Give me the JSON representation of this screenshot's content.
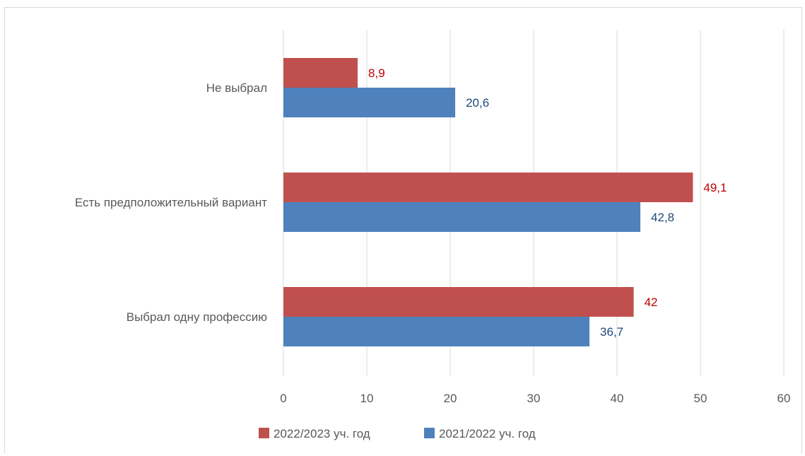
{
  "chart_data": {
    "type": "bar",
    "orientation": "horizontal",
    "categories": [
      "Не выбрал",
      "Есть предположительный вариант",
      "Выбрал одну профессию"
    ],
    "series": [
      {
        "name": "2022/2023 уч. год",
        "values": [
          8.9,
          49.1,
          42
        ],
        "labels": [
          "8,9",
          "49,1",
          "42"
        ],
        "color": "#c0504d",
        "label_color": "#c00000"
      },
      {
        "name": "2021/2022 уч. год",
        "values": [
          20.6,
          42.8,
          36.7
        ],
        "labels": [
          "20,6",
          "42,8",
          "36,7"
        ],
        "color": "#4f81bd",
        "label_color": "#1f497d"
      }
    ],
    "xlim": [
      0,
      60
    ],
    "x_ticks": [
      0,
      10,
      20,
      30,
      40,
      50,
      60
    ],
    "x_tick_labels": [
      "0",
      "10",
      "20",
      "30",
      "40",
      "50",
      "60"
    ],
    "grid": true,
    "legend_position": "bottom",
    "title": "",
    "xlabel": "",
    "ylabel": ""
  }
}
